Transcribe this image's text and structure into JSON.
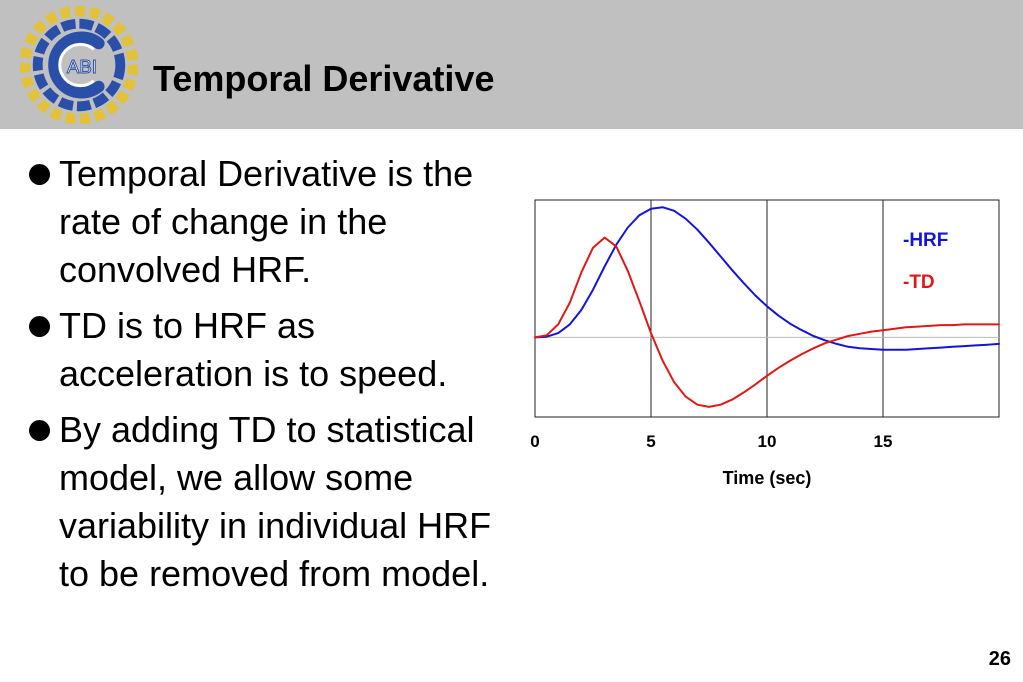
{
  "slide": {
    "title": "Temporal Derivative",
    "page_number": "26",
    "logo_text": "ABI"
  },
  "bullets": [
    "Temporal Derivative is the rate of change in the convolved HRF.",
    "TD is to HRF as acceleration is to speed.",
    "By adding TD to statistical model, we allow some variability in individual HRF to be removed from model."
  ],
  "chart_data": {
    "type": "line",
    "xlabel": "Time (sec)",
    "xticks": [
      0,
      5,
      10,
      15
    ],
    "xlim": [
      0,
      20
    ],
    "ylim": [
      -1.1,
      1.9
    ],
    "zero_line": true,
    "grid_x": [
      5,
      10,
      15
    ],
    "legend": {
      "position": "top-right",
      "entries": [
        "-HRF",
        "-TD"
      ]
    },
    "series": [
      {
        "name": "HRF",
        "color": "#1515d6",
        "x": [
          0,
          0.5,
          1,
          1.5,
          2,
          2.5,
          3,
          3.5,
          4,
          4.5,
          5,
          5.5,
          6,
          6.5,
          7,
          7.5,
          8,
          8.5,
          9,
          9.5,
          10,
          10.5,
          11,
          11.5,
          12,
          12.5,
          13,
          13.5,
          14,
          14.5,
          15,
          15.5,
          16,
          16.5,
          17,
          17.5,
          18,
          18.5,
          19,
          19.5,
          20
        ],
        "y": [
          0,
          0.01,
          0.06,
          0.18,
          0.38,
          0.66,
          0.98,
          1.28,
          1.52,
          1.69,
          1.78,
          1.8,
          1.75,
          1.64,
          1.49,
          1.31,
          1.12,
          0.93,
          0.75,
          0.58,
          0.43,
          0.3,
          0.19,
          0.1,
          0.02,
          -0.04,
          -0.09,
          -0.13,
          -0.15,
          -0.16,
          -0.17,
          -0.17,
          -0.17,
          -0.16,
          -0.15,
          -0.14,
          -0.13,
          -0.12,
          -0.11,
          -0.1,
          -0.09
        ]
      },
      {
        "name": "TD",
        "color": "#e01818",
        "x": [
          0,
          0.5,
          1,
          1.5,
          2,
          2.5,
          3,
          3.5,
          4,
          4.5,
          5,
          5.5,
          6,
          6.5,
          7,
          7.5,
          8,
          8.5,
          9,
          9.5,
          10,
          10.5,
          11,
          11.5,
          12,
          12.5,
          13,
          13.5,
          14,
          14.5,
          15,
          15.5,
          16,
          16.5,
          17,
          17.5,
          18,
          18.5,
          19,
          19.5,
          20
        ],
        "y": [
          0,
          0.03,
          0.18,
          0.48,
          0.9,
          1.24,
          1.38,
          1.26,
          0.92,
          0.5,
          0.06,
          -0.32,
          -0.62,
          -0.82,
          -0.93,
          -0.96,
          -0.93,
          -0.86,
          -0.76,
          -0.65,
          -0.53,
          -0.42,
          -0.32,
          -0.23,
          -0.15,
          -0.08,
          -0.03,
          0.02,
          0.05,
          0.08,
          0.1,
          0.12,
          0.14,
          0.15,
          0.16,
          0.17,
          0.17,
          0.18,
          0.18,
          0.18,
          0.18
        ]
      }
    ]
  },
  "colors": {
    "header_bg": "#c0c0c0",
    "hrf": "#1515d6",
    "td": "#e01818",
    "logo_blue": "#2a4fa8",
    "logo_gold": "#e2c23a"
  }
}
